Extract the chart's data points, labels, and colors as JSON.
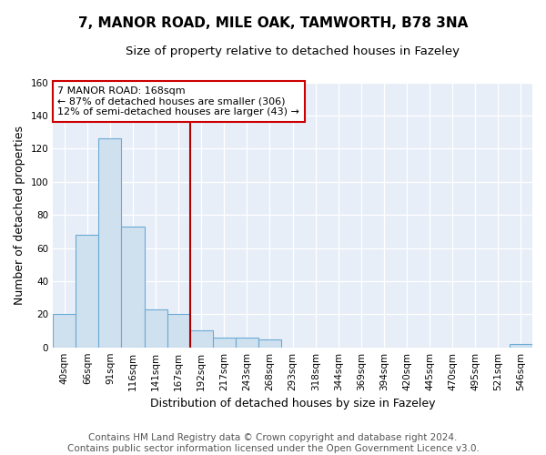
{
  "title": "7, MANOR ROAD, MILE OAK, TAMWORTH, B78 3NA",
  "subtitle": "Size of property relative to detached houses in Fazeley",
  "xlabel": "Distribution of detached houses by size in Fazeley",
  "ylabel": "Number of detached properties",
  "bar_labels": [
    "40sqm",
    "66sqm",
    "91sqm",
    "116sqm",
    "141sqm",
    "167sqm",
    "192sqm",
    "217sqm",
    "243sqm",
    "268sqm",
    "293sqm",
    "318sqm",
    "344sqm",
    "369sqm",
    "394sqm",
    "420sqm",
    "445sqm",
    "470sqm",
    "495sqm",
    "521sqm",
    "546sqm"
  ],
  "bar_values": [
    20,
    68,
    126,
    73,
    23,
    20,
    10,
    6,
    6,
    5,
    0,
    0,
    0,
    0,
    0,
    0,
    0,
    0,
    0,
    0,
    2
  ],
  "bar_color": "#cfe0ef",
  "bar_edge_color": "#6aaad4",
  "vline_x_index": 5,
  "vline_color": "#aa0000",
  "annotation_line1": "7 MANOR ROAD: 168sqm",
  "annotation_line2": "← 87% of detached houses are smaller (306)",
  "annotation_line3": "12% of semi-detached houses are larger (43) →",
  "annotation_box_color": "#cc0000",
  "ylim": [
    0,
    160
  ],
  "yticks": [
    0,
    20,
    40,
    60,
    80,
    100,
    120,
    140,
    160
  ],
  "footer_line1": "Contains HM Land Registry data © Crown copyright and database right 2024.",
  "footer_line2": "Contains public sector information licensed under the Open Government Licence v3.0.",
  "bg_color": "#ffffff",
  "plot_bg_color": "#e8eef8",
  "title_fontsize": 11,
  "subtitle_fontsize": 9.5,
  "axis_label_fontsize": 9,
  "tick_fontsize": 7.5,
  "footer_fontsize": 7.5
}
